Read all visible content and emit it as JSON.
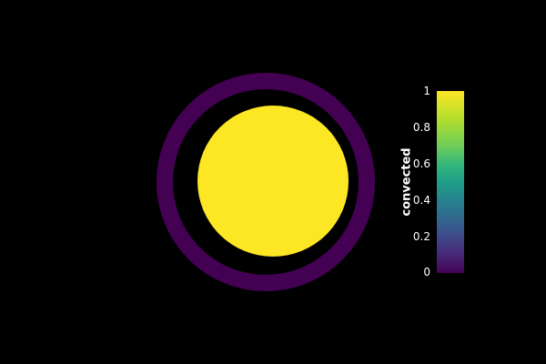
{
  "scene": {
    "background": "#000000",
    "outer_ring_color": "#440154",
    "inner_disc_color": "#fde725"
  },
  "colorbar": {
    "title": "convected",
    "colormap": "viridis",
    "range": [
      0,
      1
    ],
    "ticks": [
      "1",
      "0.8",
      "0.6",
      "0.4",
      "0.2",
      "0"
    ]
  }
}
